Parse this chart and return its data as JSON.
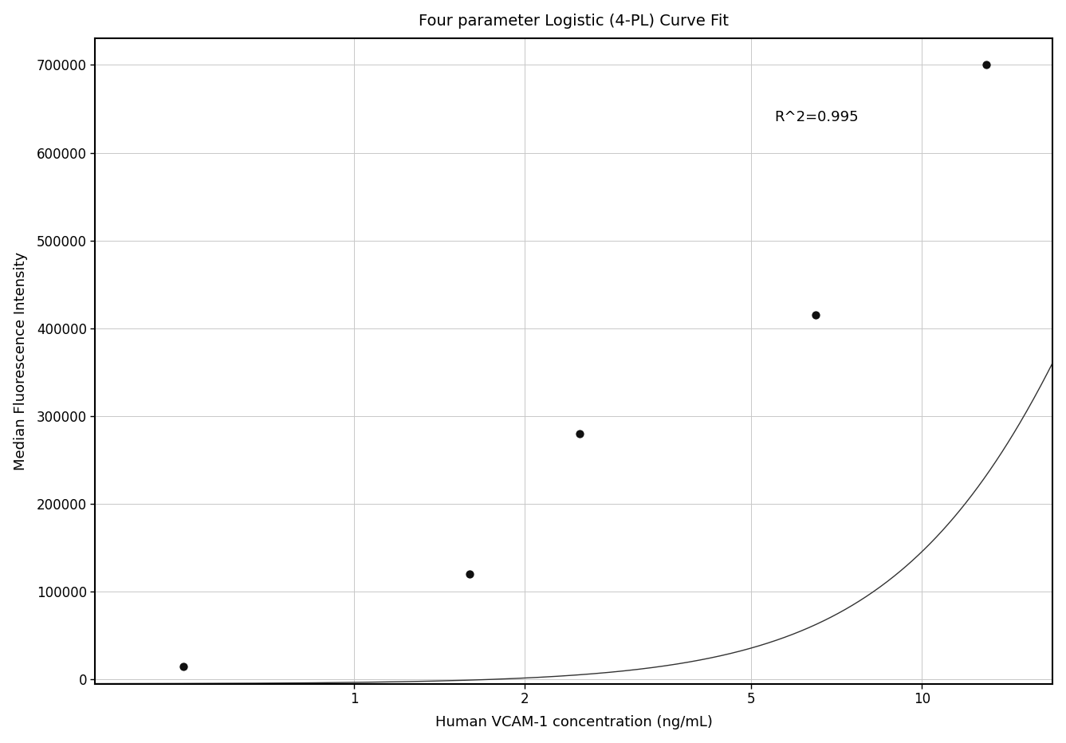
{
  "title": "Four parameter Logistic (4-PL) Curve Fit",
  "xlabel": "Human VCAM-1 concentration (ng/mL)",
  "ylabel": "Median Fluorescence Intensity",
  "data_x": [
    0.5,
    1.6,
    2.5,
    6.5,
    13.0
  ],
  "data_y": [
    15000,
    120000,
    280000,
    415000,
    700000
  ],
  "r_squared_text": "R^2=0.995",
  "r_squared_x": 5.5,
  "r_squared_y": 640000,
  "xlim": [
    0.35,
    17.0
  ],
  "ylim": [
    -5000,
    730000
  ],
  "yticks": [
    0,
    100000,
    200000,
    300000,
    400000,
    500000,
    600000,
    700000
  ],
  "xticks": [
    1,
    2,
    5,
    10
  ],
  "curve_color": "#333333",
  "dot_color": "#111111",
  "dot_size": 55,
  "background_color": "#ffffff",
  "grid_color": "#c8c8c8",
  "title_fontsize": 14,
  "label_fontsize": 13,
  "tick_fontsize": 12,
  "annotation_fontsize": 13,
  "curve_start_x": 0.3,
  "curve_end_x": 17.0
}
